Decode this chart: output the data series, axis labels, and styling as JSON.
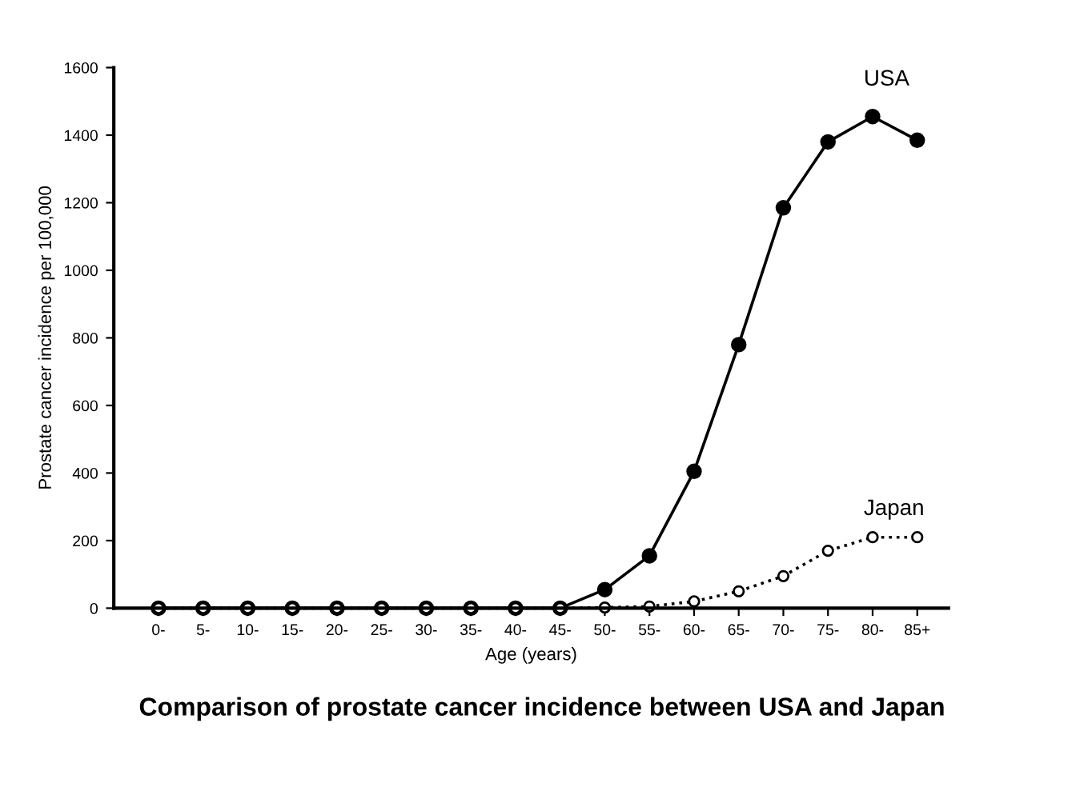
{
  "chart_data": {
    "type": "line",
    "title": "Comparison of prostate cancer incidence between USA and Japan",
    "xlabel": "Age (years)",
    "ylabel": "Prostate cancer incidence per 100,000",
    "categories": [
      "0-",
      "5-",
      "10-",
      "15-",
      "20-",
      "25-",
      "30-",
      "35-",
      "40-",
      "45-",
      "50-",
      "55-",
      "60-",
      "65-",
      "70-",
      "75-",
      "80-",
      "85+"
    ],
    "series": [
      {
        "name": "USA",
        "color": "#000000",
        "marker": "circle",
        "line_style": "solid",
        "values": [
          0,
          0,
          0,
          0,
          0,
          0,
          0,
          0,
          0,
          0,
          55,
          155,
          405,
          780,
          1185,
          1380,
          1455,
          1385
        ]
      },
      {
        "name": "Japan",
        "color": "#000000",
        "marker": "circle",
        "line_style": "dotted",
        "values": [
          0,
          0,
          0,
          0,
          0,
          0,
          0,
          0,
          0,
          0,
          2,
          5,
          20,
          50,
          95,
          170,
          210,
          210
        ]
      }
    ],
    "ylim": [
      0,
      1600
    ],
    "yticks": [
      0,
      200,
      400,
      600,
      800,
      1000,
      1200,
      1400,
      1600
    ],
    "grid": false,
    "legend": false
  }
}
